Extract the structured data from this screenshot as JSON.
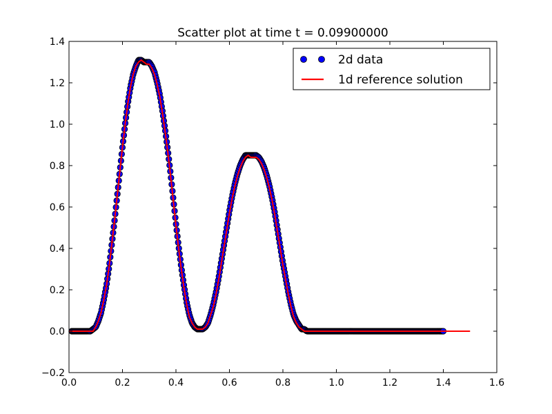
{
  "chart_data": {
    "type": "scatter",
    "title": "Scatter plot at time t =     0.09900000",
    "xlabel": "",
    "ylabel": "",
    "xlim": [
      0.0,
      1.6
    ],
    "ylim": [
      -0.2,
      1.4
    ],
    "xticks": [
      "0.0",
      "0.2",
      "0.4",
      "0.6",
      "0.8",
      "1.0",
      "1.2",
      "1.4",
      "1.6"
    ],
    "yticks": [
      "−0.2",
      "0.0",
      "0.2",
      "0.4",
      "0.6",
      "0.8",
      "1.0",
      "1.2",
      "1.4"
    ],
    "xtick_values": [
      0.0,
      0.2,
      0.4,
      0.6,
      0.8,
      1.0,
      1.2,
      1.4,
      1.6
    ],
    "ytick_values": [
      -0.2,
      0.0,
      0.2,
      0.4,
      0.6,
      0.8,
      1.0,
      1.2,
      1.4
    ],
    "grid": false,
    "legend_position": "top-right",
    "series": [
      {
        "name": "2d data",
        "kind": "scatter",
        "color": "#0000ff",
        "edge_color": "#000000",
        "x": [
          0.01,
          0.02,
          0.03,
          0.04,
          0.05,
          0.06,
          0.07,
          0.08,
          0.09,
          0.1,
          0.11,
          0.12,
          0.13,
          0.14,
          0.15,
          0.16,
          0.17,
          0.18,
          0.19,
          0.2,
          0.21,
          0.22,
          0.23,
          0.24,
          0.25,
          0.26,
          0.27,
          0.28,
          0.29,
          0.3,
          0.31,
          0.32,
          0.33,
          0.34,
          0.35,
          0.36,
          0.37,
          0.38,
          0.39,
          0.4,
          0.41,
          0.42,
          0.43,
          0.44,
          0.45,
          0.46,
          0.47,
          0.48,
          0.49,
          0.5,
          0.51,
          0.52,
          0.53,
          0.54,
          0.55,
          0.56,
          0.57,
          0.58,
          0.59,
          0.6,
          0.61,
          0.62,
          0.63,
          0.64,
          0.65,
          0.66,
          0.67,
          0.68,
          0.69,
          0.7,
          0.71,
          0.72,
          0.73,
          0.74,
          0.75,
          0.76,
          0.77,
          0.78,
          0.79,
          0.8,
          0.81,
          0.82,
          0.83,
          0.84,
          0.85,
          0.86,
          0.87,
          0.88,
          0.89,
          0.9,
          0.92,
          0.94,
          0.96,
          0.98,
          1.0,
          1.05,
          1.1,
          1.15,
          1.2,
          1.25,
          1.3,
          1.35,
          1.4
        ],
        "y": [
          0.0,
          0.0,
          0.0,
          0.0,
          0.0,
          0.0,
          0.0,
          0.0,
          0.01,
          0.02,
          0.05,
          0.09,
          0.15,
          0.22,
          0.31,
          0.42,
          0.53,
          0.65,
          0.77,
          0.89,
          1.0,
          1.1,
          1.18,
          1.24,
          1.28,
          1.31,
          1.31,
          1.3,
          1.3,
          1.3,
          1.28,
          1.25,
          1.2,
          1.14,
          1.06,
          0.97,
          0.87,
          0.76,
          0.64,
          0.52,
          0.41,
          0.31,
          0.22,
          0.14,
          0.08,
          0.04,
          0.02,
          0.01,
          0.01,
          0.01,
          0.02,
          0.04,
          0.08,
          0.13,
          0.19,
          0.26,
          0.34,
          0.42,
          0.5,
          0.58,
          0.65,
          0.71,
          0.76,
          0.8,
          0.83,
          0.85,
          0.85,
          0.85,
          0.85,
          0.85,
          0.84,
          0.82,
          0.79,
          0.75,
          0.7,
          0.64,
          0.57,
          0.49,
          0.41,
          0.33,
          0.26,
          0.19,
          0.13,
          0.08,
          0.05,
          0.03,
          0.01,
          0.01,
          0.0,
          0.0,
          0.0,
          0.0,
          0.0,
          0.0,
          0.0,
          0.0,
          0.0,
          0.0,
          0.0,
          0.0,
          0.0,
          0.0,
          0.0
        ]
      },
      {
        "name": "1d reference solution",
        "kind": "line",
        "color": "#ff0000",
        "x": [
          0.0,
          0.05,
          0.08,
          0.09,
          0.1,
          0.11,
          0.12,
          0.13,
          0.14,
          0.15,
          0.16,
          0.17,
          0.18,
          0.19,
          0.2,
          0.21,
          0.22,
          0.23,
          0.24,
          0.25,
          0.26,
          0.27,
          0.28,
          0.29,
          0.3,
          0.31,
          0.32,
          0.33,
          0.34,
          0.35,
          0.36,
          0.37,
          0.38,
          0.39,
          0.4,
          0.41,
          0.42,
          0.43,
          0.44,
          0.45,
          0.46,
          0.47,
          0.48,
          0.49,
          0.5,
          0.51,
          0.52,
          0.53,
          0.54,
          0.55,
          0.56,
          0.57,
          0.58,
          0.59,
          0.6,
          0.61,
          0.62,
          0.63,
          0.64,
          0.65,
          0.66,
          0.67,
          0.68,
          0.69,
          0.7,
          0.71,
          0.72,
          0.73,
          0.74,
          0.75,
          0.76,
          0.77,
          0.78,
          0.79,
          0.8,
          0.81,
          0.82,
          0.83,
          0.84,
          0.85,
          0.86,
          0.87,
          0.88,
          0.89,
          0.9,
          0.92,
          1.0,
          1.2,
          1.4,
          1.5
        ],
        "y": [
          0.0,
          0.0,
          0.0,
          0.0,
          0.02,
          0.05,
          0.09,
          0.15,
          0.22,
          0.31,
          0.42,
          0.53,
          0.65,
          0.77,
          0.89,
          1.0,
          1.1,
          1.18,
          1.24,
          1.28,
          1.3,
          1.31,
          1.3,
          1.29,
          1.29,
          1.27,
          1.24,
          1.19,
          1.13,
          1.05,
          0.96,
          0.86,
          0.75,
          0.63,
          0.51,
          0.4,
          0.3,
          0.21,
          0.13,
          0.07,
          0.04,
          0.02,
          0.01,
          0.01,
          0.01,
          0.02,
          0.04,
          0.08,
          0.12,
          0.18,
          0.25,
          0.33,
          0.41,
          0.49,
          0.57,
          0.64,
          0.7,
          0.75,
          0.79,
          0.82,
          0.84,
          0.85,
          0.84,
          0.84,
          0.84,
          0.83,
          0.81,
          0.78,
          0.74,
          0.69,
          0.63,
          0.56,
          0.48,
          0.4,
          0.32,
          0.25,
          0.18,
          0.12,
          0.07,
          0.04,
          0.02,
          0.01,
          0.0,
          0.0,
          0.0,
          0.0,
          0.0,
          0.0,
          0.0,
          0.0
        ]
      }
    ]
  },
  "legend": {
    "items": [
      {
        "label": "2d data"
      },
      {
        "label": "1d reference solution"
      }
    ]
  }
}
